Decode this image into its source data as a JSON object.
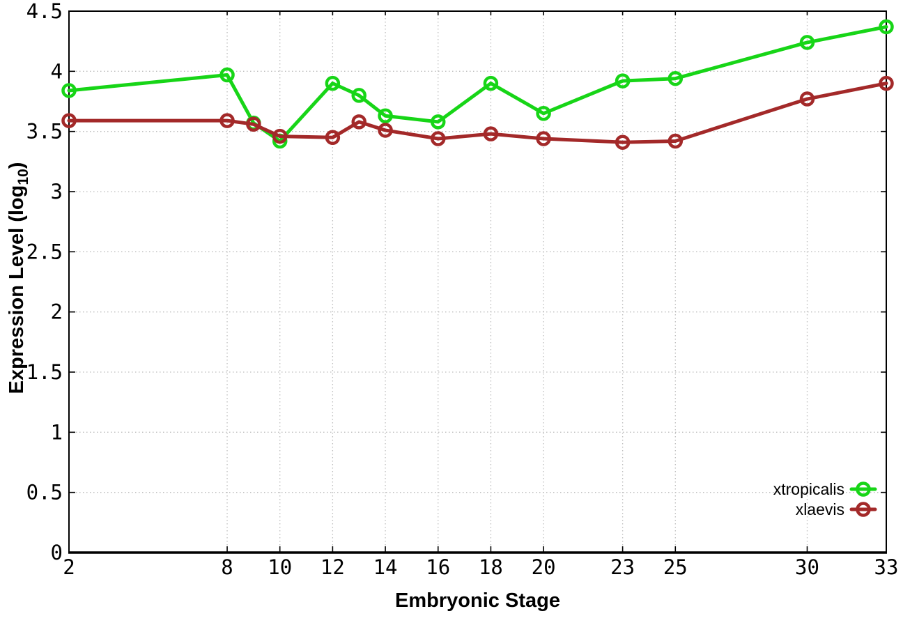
{
  "figure": {
    "background": "#ffffff",
    "axis_color": "#000000",
    "grid_color": "#bdbdbd",
    "x_axis_title": "Embryonic Stage",
    "y_axis_title_main": "Expression Level (log",
    "y_axis_title_sub": "10",
    "y_axis_title_close": ")"
  },
  "chart_data": {
    "type": "line",
    "title": "",
    "xlabel": "Embryonic Stage",
    "ylabel": "Expression Level (log10)",
    "xlim": [
      2,
      33
    ],
    "ylim": [
      0,
      4.5
    ],
    "grid": true,
    "legend_position": "inside bottom right",
    "marker": "open-circle",
    "x_ticks": [
      2,
      8,
      10,
      12,
      14,
      16,
      18,
      20,
      23,
      25,
      30,
      33
    ],
    "x_tick_labels": [
      "2",
      "8",
      "10",
      "12",
      "14",
      "16",
      "18",
      "20",
      "23",
      "25",
      "30",
      "33"
    ],
    "y_ticks": [
      0,
      0.5,
      1,
      1.5,
      2,
      2.5,
      3,
      3.5,
      4,
      4.5
    ],
    "y_tick_labels": [
      "0",
      "0.5",
      "1",
      "1.5",
      "2",
      "2.5",
      "3",
      "3.5",
      "4",
      "4.5"
    ],
    "x": [
      2,
      8,
      9,
      10,
      12,
      13,
      14,
      16,
      18,
      20,
      23,
      25,
      30,
      33
    ],
    "series": [
      {
        "name": "xtropicalis",
        "color": "#17d517",
        "values": [
          3.84,
          3.97,
          3.57,
          3.42,
          3.9,
          3.8,
          3.63,
          3.58,
          3.9,
          3.65,
          3.92,
          3.94,
          4.24,
          4.37
        ]
      },
      {
        "name": "xlaevis",
        "color": "#a32929",
        "values": [
          3.59,
          3.59,
          3.56,
          3.46,
          3.45,
          3.58,
          3.51,
          3.44,
          3.48,
          3.44,
          3.41,
          3.42,
          3.77,
          3.9
        ]
      }
    ]
  }
}
